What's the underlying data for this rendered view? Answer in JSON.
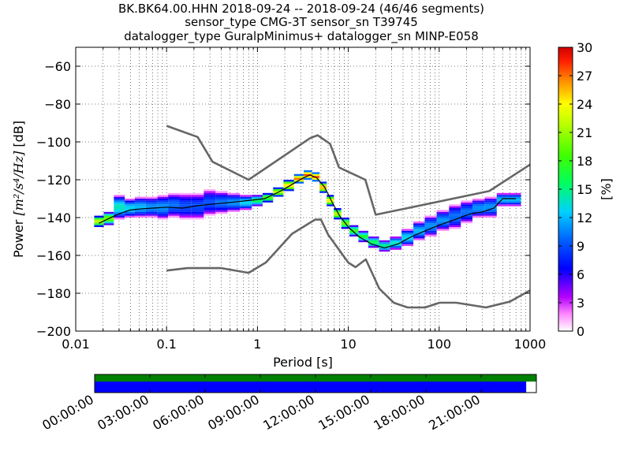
{
  "chart_data": {
    "type": "heatmap",
    "title_lines": [
      "BK.BK64.00.HHN   2018-09-24 -- 2018-09-24  (46/46 segments)",
      "sensor_type CMG-3T sensor_sn T39745",
      "datalogger_type GuralpMinimus+ datalogger_sn MINP-E058"
    ],
    "xlabel": "Period [s]",
    "ylabel_prefix": "Power",
    "ylabel_unit": "[m²/s⁴/Hz]",
    "ylabel_suffix": "[dB]",
    "x_scale": "log",
    "xlim": [
      0.01,
      1000
    ],
    "ylim": [
      -200,
      -50
    ],
    "x_ticks": [
      0.01,
      0.1,
      1,
      10,
      100,
      1000
    ],
    "x_tick_labels": [
      "0.01",
      "0.1",
      "1",
      "10",
      "100",
      "1000"
    ],
    "y_ticks": [
      -200,
      -180,
      -160,
      -140,
      -120,
      -100,
      -80,
      -60
    ],
    "y_tick_labels": [
      "−200",
      "−180",
      "−160",
      "−140",
      "−120",
      "−100",
      "−80",
      "−60"
    ],
    "grid": true,
    "colorbar": {
      "label": "[%]",
      "range": [
        0,
        30
      ],
      "ticks": [
        0,
        3,
        6,
        9,
        12,
        15,
        18,
        21,
        24,
        27,
        30
      ],
      "tick_labels": [
        "0",
        "3",
        "6",
        "9",
        "12",
        "15",
        "18",
        "21",
        "24",
        "27",
        "30"
      ]
    },
    "noise_models": [
      {
        "name": "NHNM",
        "color": "#666666",
        "points": [
          [
            0.1,
            -91.5
          ],
          [
            0.22,
            -97.4
          ],
          [
            0.32,
            -110.5
          ],
          [
            0.8,
            -120
          ],
          [
            3.8,
            -98
          ],
          [
            4.6,
            -96.5
          ],
          [
            6.3,
            -101
          ],
          [
            7.9,
            -113.5
          ],
          [
            15.4,
            -120
          ],
          [
            20,
            -138.5
          ],
          [
            354.8,
            -126
          ],
          [
            1000,
            -112
          ]
        ]
      },
      {
        "name": "NLNM",
        "color": "#666666",
        "points": [
          [
            0.1,
            -168
          ],
          [
            0.17,
            -166.7
          ],
          [
            0.4,
            -166.7
          ],
          [
            0.8,
            -169.2
          ],
          [
            1.24,
            -163.7
          ],
          [
            2.4,
            -148.6
          ],
          [
            4.3,
            -141.1
          ],
          [
            5,
            -141.1
          ],
          [
            6,
            -149
          ],
          [
            10,
            -163.8
          ],
          [
            12,
            -166.2
          ],
          [
            15.6,
            -162.1
          ],
          [
            21.9,
            -177.5
          ],
          [
            31.6,
            -185
          ],
          [
            45,
            -187.5
          ],
          [
            70,
            -187.5
          ],
          [
            101,
            -185
          ],
          [
            154,
            -185
          ],
          [
            328,
            -187.5
          ],
          [
            600,
            -184.4
          ],
          [
            1000,
            -178.5
          ]
        ]
      }
    ],
    "median_curve": [
      [
        0.018,
        -143
      ],
      [
        0.022,
        -141
      ],
      [
        0.03,
        -138
      ],
      [
        0.04,
        -136
      ],
      [
        0.05,
        -135.5
      ],
      [
        0.07,
        -135
      ],
      [
        0.1,
        -134.5
      ],
      [
        0.15,
        -135
      ],
      [
        0.2,
        -134
      ],
      [
        0.3,
        -133
      ],
      [
        0.5,
        -132
      ],
      [
        0.8,
        -131
      ],
      [
        1.2,
        -130
      ],
      [
        1.8,
        -126
      ],
      [
        2.5,
        -122
      ],
      [
        3.2,
        -119
      ],
      [
        3.8,
        -117.5
      ],
      [
        4.5,
        -119
      ],
      [
        5.5,
        -124
      ],
      [
        6.5,
        -131
      ],
      [
        8,
        -139
      ],
      [
        10,
        -145
      ],
      [
        13,
        -150
      ],
      [
        18,
        -154
      ],
      [
        25,
        -156
      ],
      [
        35,
        -154
      ],
      [
        50,
        -150
      ],
      [
        70,
        -147
      ],
      [
        100,
        -144
      ],
      [
        150,
        -141
      ],
      [
        220,
        -138
      ],
      [
        300,
        -137
      ],
      [
        400,
        -135
      ],
      [
        500,
        -130
      ],
      [
        700,
        -130
      ]
    ],
    "pdf_band": [
      {
        "x": 0.018,
        "low": -145,
        "high": -139,
        "peak": 22
      },
      {
        "x": 0.023,
        "low": -144,
        "high": -137,
        "peak": 20
      },
      {
        "x": 0.03,
        "low": -141,
        "high": -128,
        "peak": 14
      },
      {
        "x": 0.04,
        "low": -140,
        "high": -130,
        "peak": 13
      },
      {
        "x": 0.05,
        "low": -140,
        "high": -129,
        "peak": 12
      },
      {
        "x": 0.07,
        "low": -140,
        "high": -129,
        "peak": 11
      },
      {
        "x": 0.09,
        "low": -141,
        "high": -128,
        "peak": 11
      },
      {
        "x": 0.12,
        "low": -140,
        "high": -127,
        "peak": 10
      },
      {
        "x": 0.16,
        "low": -141,
        "high": -127,
        "peak": 9
      },
      {
        "x": 0.22,
        "low": -141,
        "high": -127,
        "peak": 9
      },
      {
        "x": 0.3,
        "low": -139,
        "high": -125,
        "peak": 9
      },
      {
        "x": 0.4,
        "low": -138,
        "high": -126,
        "peak": 10
      },
      {
        "x": 0.55,
        "low": -137,
        "high": -127,
        "peak": 11
      },
      {
        "x": 0.75,
        "low": -136,
        "high": -128,
        "peak": 13
      },
      {
        "x": 1.0,
        "low": -134,
        "high": -128,
        "peak": 16
      },
      {
        "x": 1.3,
        "low": -132,
        "high": -127,
        "peak": 19
      },
      {
        "x": 1.7,
        "low": -129,
        "high": -124,
        "peak": 22
      },
      {
        "x": 2.2,
        "low": -126,
        "high": -120,
        "peak": 25
      },
      {
        "x": 2.9,
        "low": -122,
        "high": -117,
        "peak": 27
      },
      {
        "x": 3.6,
        "low": -120,
        "high": -115,
        "peak": 28
      },
      {
        "x": 4.4,
        "low": -121,
        "high": -116,
        "peak": 28
      },
      {
        "x": 5.3,
        "low": -127,
        "high": -121,
        "peak": 26
      },
      {
        "x": 6.3,
        "low": -134,
        "high": -128,
        "peak": 24
      },
      {
        "x": 7.6,
        "low": -141,
        "high": -135,
        "peak": 22
      },
      {
        "x": 9.2,
        "low": -146,
        "high": -140,
        "peak": 20
      },
      {
        "x": 11.5,
        "low": -150,
        "high": -144,
        "peak": 18
      },
      {
        "x": 14.5,
        "low": -153,
        "high": -147,
        "peak": 17
      },
      {
        "x": 19,
        "low": -156,
        "high": -150,
        "peak": 16
      },
      {
        "x": 25,
        "low": -158,
        "high": -152,
        "peak": 15
      },
      {
        "x": 33,
        "low": -157,
        "high": -150,
        "peak": 14
      },
      {
        "x": 45,
        "low": -155,
        "high": -146,
        "peak": 13
      },
      {
        "x": 60,
        "low": -152,
        "high": -142,
        "peak": 12
      },
      {
        "x": 80,
        "low": -150,
        "high": -139,
        "peak": 11
      },
      {
        "x": 110,
        "low": -147,
        "high": -136,
        "peak": 11
      },
      {
        "x": 150,
        "low": -146,
        "high": -133,
        "peak": 10
      },
      {
        "x": 200,
        "low": -143,
        "high": -131,
        "peak": 10
      },
      {
        "x": 270,
        "low": -140,
        "high": -130,
        "peak": 11
      },
      {
        "x": 370,
        "low": -140,
        "high": -129,
        "peak": 11
      },
      {
        "x": 500,
        "low": -134,
        "high": -127,
        "peak": 12
      },
      {
        "x": 650,
        "low": -134,
        "high": -127,
        "peak": 12
      }
    ]
  },
  "timeline": {
    "tick_labels": [
      "00:00:00",
      "03:00:00",
      "06:00:00",
      "09:00:00",
      "12:00:00",
      "15:00:00",
      "18:00:00",
      "21:00:00"
    ],
    "data_coverage_color": "#008000",
    "segment_coverage_color": "#0000ff",
    "data_coverage_fraction": 1.0,
    "segment_coverage_fraction": 0.977
  }
}
